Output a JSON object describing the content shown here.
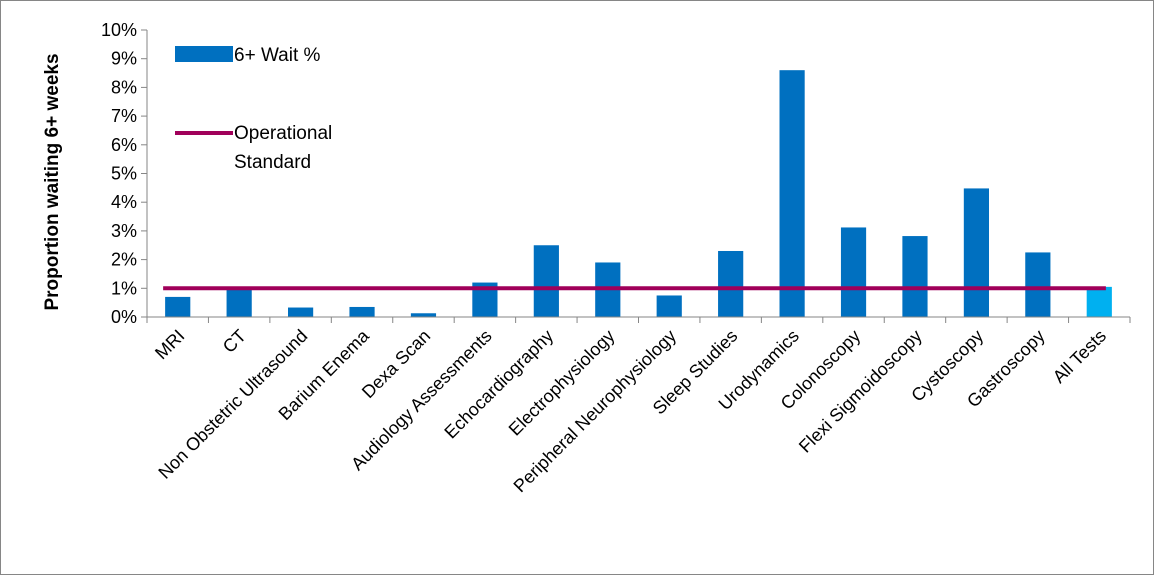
{
  "chart_data": {
    "type": "bar",
    "title": "",
    "xlabel": "",
    "ylabel": "Proportion waiting 6+ weeks",
    "ylim": [
      0,
      10
    ],
    "y_tick_labels": [
      "0%",
      "1%",
      "2%",
      "3%",
      "4%",
      "5%",
      "6%",
      "7%",
      "8%",
      "9%",
      "10%"
    ],
    "categories": [
      "MRI",
      "CT",
      "Non Obstetric Ultrasound",
      "Barium Enema",
      "Dexa Scan",
      "Audiology Assessments",
      "Echocardiography",
      "Electrophysiology",
      "Peripheral Neurophysiology",
      "Sleep Studies",
      "Urodynamics",
      "Colonoscopy",
      "Flexi Sigmoidoscopy",
      "Cystoscopy",
      "Gastroscopy",
      "All Tests"
    ],
    "series": [
      {
        "name": "6+ Wait %",
        "color": "#0070C0",
        "highlight_color": "#00B0F0",
        "highlight_category": "All Tests",
        "values": [
          0.7,
          1.05,
          0.33,
          0.35,
          0.13,
          1.2,
          2.5,
          1.9,
          0.75,
          2.3,
          8.6,
          3.12,
          2.82,
          4.48,
          2.25,
          1.05
        ]
      },
      {
        "name": "Operational Standard",
        "type": "line",
        "color": "#A0005A",
        "value": 1.0
      }
    ],
    "legend_position": "top-left",
    "grid": false
  }
}
